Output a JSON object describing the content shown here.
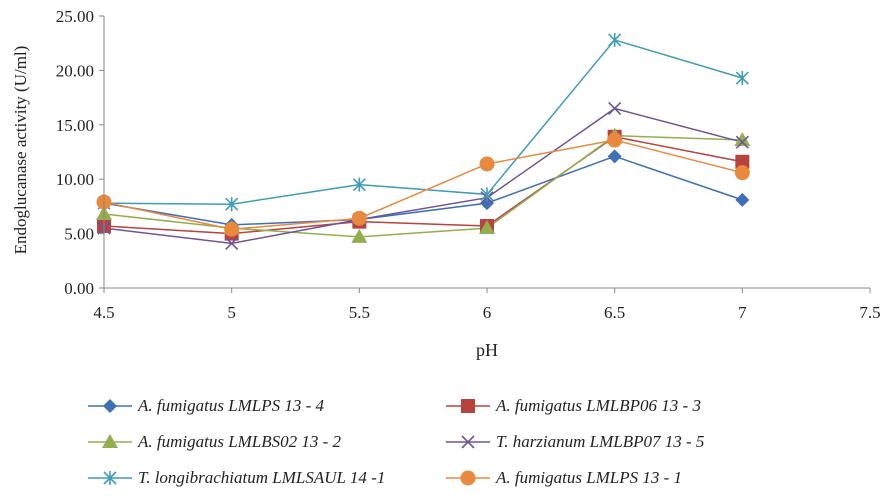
{
  "chart_data": {
    "type": "line",
    "xlabel": "pH",
    "ylabel": "Endoglucanase activity (U/ml)",
    "xlim": [
      4.5,
      7.5
    ],
    "ylim": [
      0,
      25
    ],
    "x_ticks": [
      "4.5",
      "5",
      "5.5",
      "6",
      "6.5",
      "7",
      "7.5"
    ],
    "y_ticks": [
      "0.00",
      "5.00",
      "10.00",
      "15.00",
      "20.00",
      "25.00"
    ],
    "grid": false,
    "legend_position": "bottom",
    "x": [
      4.5,
      5,
      5.5,
      6,
      6.5,
      7
    ],
    "series": [
      {
        "name": "A. fumigatus LMLPS 13 - 4",
        "color": "#3F6FB5",
        "marker": "diamond",
        "values": [
          7.8,
          5.8,
          6.3,
          7.8,
          12.1,
          8.1
        ]
      },
      {
        "name": "A. fumigatus LMLBP06 13 - 3",
        "color": "#B8433E",
        "marker": "square",
        "values": [
          5.7,
          5.0,
          6.1,
          5.7,
          13.9,
          11.6
        ]
      },
      {
        "name": "A. fumigatus LMLBS02 13 - 2",
        "color": "#93AE4E",
        "marker": "triangle",
        "values": [
          6.8,
          5.5,
          4.7,
          5.5,
          14.0,
          13.6
        ]
      },
      {
        "name": "T. harzianum LMLBP07 13 - 5",
        "color": "#6E5497",
        "marker": "x",
        "values": [
          5.5,
          4.1,
          6.3,
          8.3,
          16.5,
          13.4
        ]
      },
      {
        "name": "T. longibrachiatum LMLSAUL 14 -1",
        "color": "#3E9CB5",
        "marker": "star",
        "values": [
          7.8,
          7.7,
          9.5,
          8.6,
          22.8,
          19.3
        ]
      },
      {
        "name": "A. fumigatus LMLPS 13 - 1",
        "color": "#E8893E",
        "marker": "circle",
        "values": [
          7.9,
          5.4,
          6.4,
          11.4,
          13.6,
          10.6
        ]
      }
    ]
  }
}
